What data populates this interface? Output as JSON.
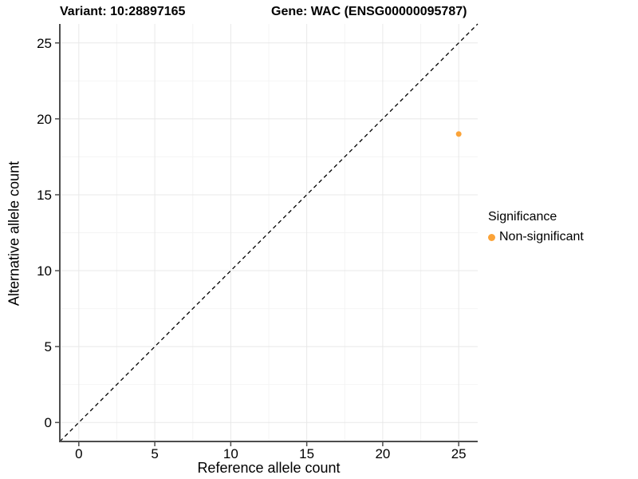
{
  "title": {
    "variant": "Variant: 10:28897165",
    "gene": "Gene: WAC (ENSG00000095787)"
  },
  "chart_data": {
    "type": "scatter",
    "xlabel": "Reference allele count",
    "ylabel": "Alternative allele count",
    "xlim": [
      -1.25,
      26.25
    ],
    "ylim": [
      -1.25,
      26.25
    ],
    "x_ticks": [
      0,
      5,
      10,
      15,
      20,
      25
    ],
    "y_ticks": [
      0,
      5,
      10,
      15,
      20,
      25
    ],
    "minor_grid_step": 2.5,
    "grid": true,
    "identity_line": {
      "type": "dashed",
      "slope": 1,
      "intercept": 0
    },
    "points": [
      {
        "x": 25,
        "y": 19,
        "series": "Non-significant"
      }
    ],
    "legend": {
      "title": "Significance",
      "position": "right",
      "entries": [
        {
          "label": "Non-significant",
          "color": "#FBA338"
        }
      ]
    }
  },
  "colors": {
    "point": "#FBA338",
    "grid_major": "#E8E8E8",
    "grid_minor": "#F4F4F4",
    "axis_line": "#4D4D4D",
    "tick": "#4D4D4D",
    "identity_line": "#000000",
    "text": "#000000",
    "background": "#FFFFFF"
  }
}
